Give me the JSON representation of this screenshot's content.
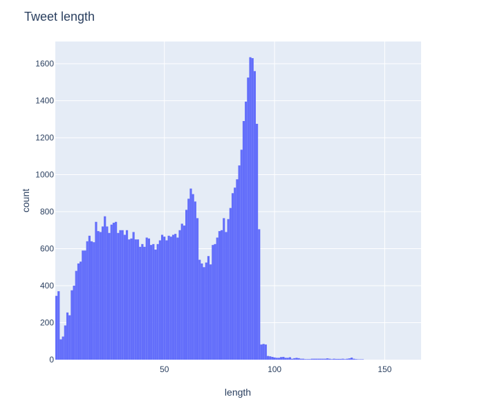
{
  "chart_data": {
    "type": "bar",
    "title": "Tweet length",
    "xlabel": "length",
    "ylabel": "count",
    "xlim": [
      0.5,
      166.5
    ],
    "ylim": [
      0,
      1720
    ],
    "xticks": [
      50,
      100,
      150
    ],
    "yticks": [
      0,
      200,
      400,
      600,
      800,
      1000,
      1200,
      1400,
      1600
    ],
    "grid": true,
    "bar_color": "#636efa",
    "plot_background": "#e5ecf6",
    "grid_color": "#ffffff",
    "text_color": "#2a3f5f",
    "series": [
      {
        "name": "",
        "x": [
          1,
          2,
          3,
          4,
          5,
          6,
          7,
          8,
          9,
          10,
          11,
          12,
          13,
          14,
          15,
          16,
          17,
          18,
          19,
          20,
          21,
          22,
          23,
          24,
          25,
          26,
          27,
          28,
          29,
          30,
          31,
          32,
          33,
          34,
          35,
          36,
          37,
          38,
          39,
          40,
          41,
          42,
          43,
          44,
          45,
          46,
          47,
          48,
          49,
          50,
          51,
          52,
          53,
          54,
          55,
          56,
          57,
          58,
          59,
          60,
          61,
          62,
          63,
          64,
          65,
          66,
          67,
          68,
          69,
          70,
          71,
          72,
          73,
          74,
          75,
          76,
          77,
          78,
          79,
          80,
          81,
          82,
          83,
          84,
          85,
          86,
          87,
          88,
          89,
          90,
          91,
          92,
          93,
          94,
          95,
          96,
          97,
          98,
          99,
          100,
          101,
          102,
          103,
          104,
          105,
          106,
          107,
          108,
          109,
          110,
          111,
          112,
          113,
          114,
          115,
          116,
          117,
          118,
          119,
          120,
          121,
          122,
          123,
          124,
          125,
          126,
          127,
          128,
          129,
          130,
          131,
          132,
          133,
          134,
          135,
          136,
          137,
          138,
          139,
          140
        ],
        "values": [
          345,
          370,
          110,
          125,
          185,
          255,
          240,
          375,
          400,
          480,
          520,
          530,
          590,
          590,
          640,
          670,
          640,
          635,
          745,
          695,
          690,
          720,
          775,
          720,
          685,
          730,
          740,
          745,
          685,
          700,
          700,
          675,
          700,
          650,
          655,
          690,
          650,
          650,
          610,
          625,
          610,
          660,
          655,
          620,
          625,
          595,
          625,
          645,
          675,
          665,
          645,
          670,
          665,
          675,
          680,
          660,
          700,
          735,
          725,
          810,
          870,
          925,
          895,
          855,
          765,
          540,
          520,
          500,
          525,
          560,
          515,
          620,
          625,
          660,
          695,
          700,
          765,
          690,
          760,
          820,
          900,
          930,
          975,
          1050,
          1135,
          1290,
          1395,
          1525,
          1635,
          1630,
          1560,
          1275,
          705,
          82,
          85,
          82,
          20,
          18,
          15,
          12,
          10,
          10,
          14,
          15,
          10,
          10,
          13,
          5,
          8,
          10,
          8,
          5,
          5,
          3,
          3,
          3,
          5,
          5,
          5,
          5,
          5,
          5,
          5,
          7,
          5,
          3,
          5,
          4,
          4,
          4,
          5,
          3,
          5,
          7,
          11,
          5,
          3,
          2,
          2,
          2
        ]
      }
    ]
  }
}
